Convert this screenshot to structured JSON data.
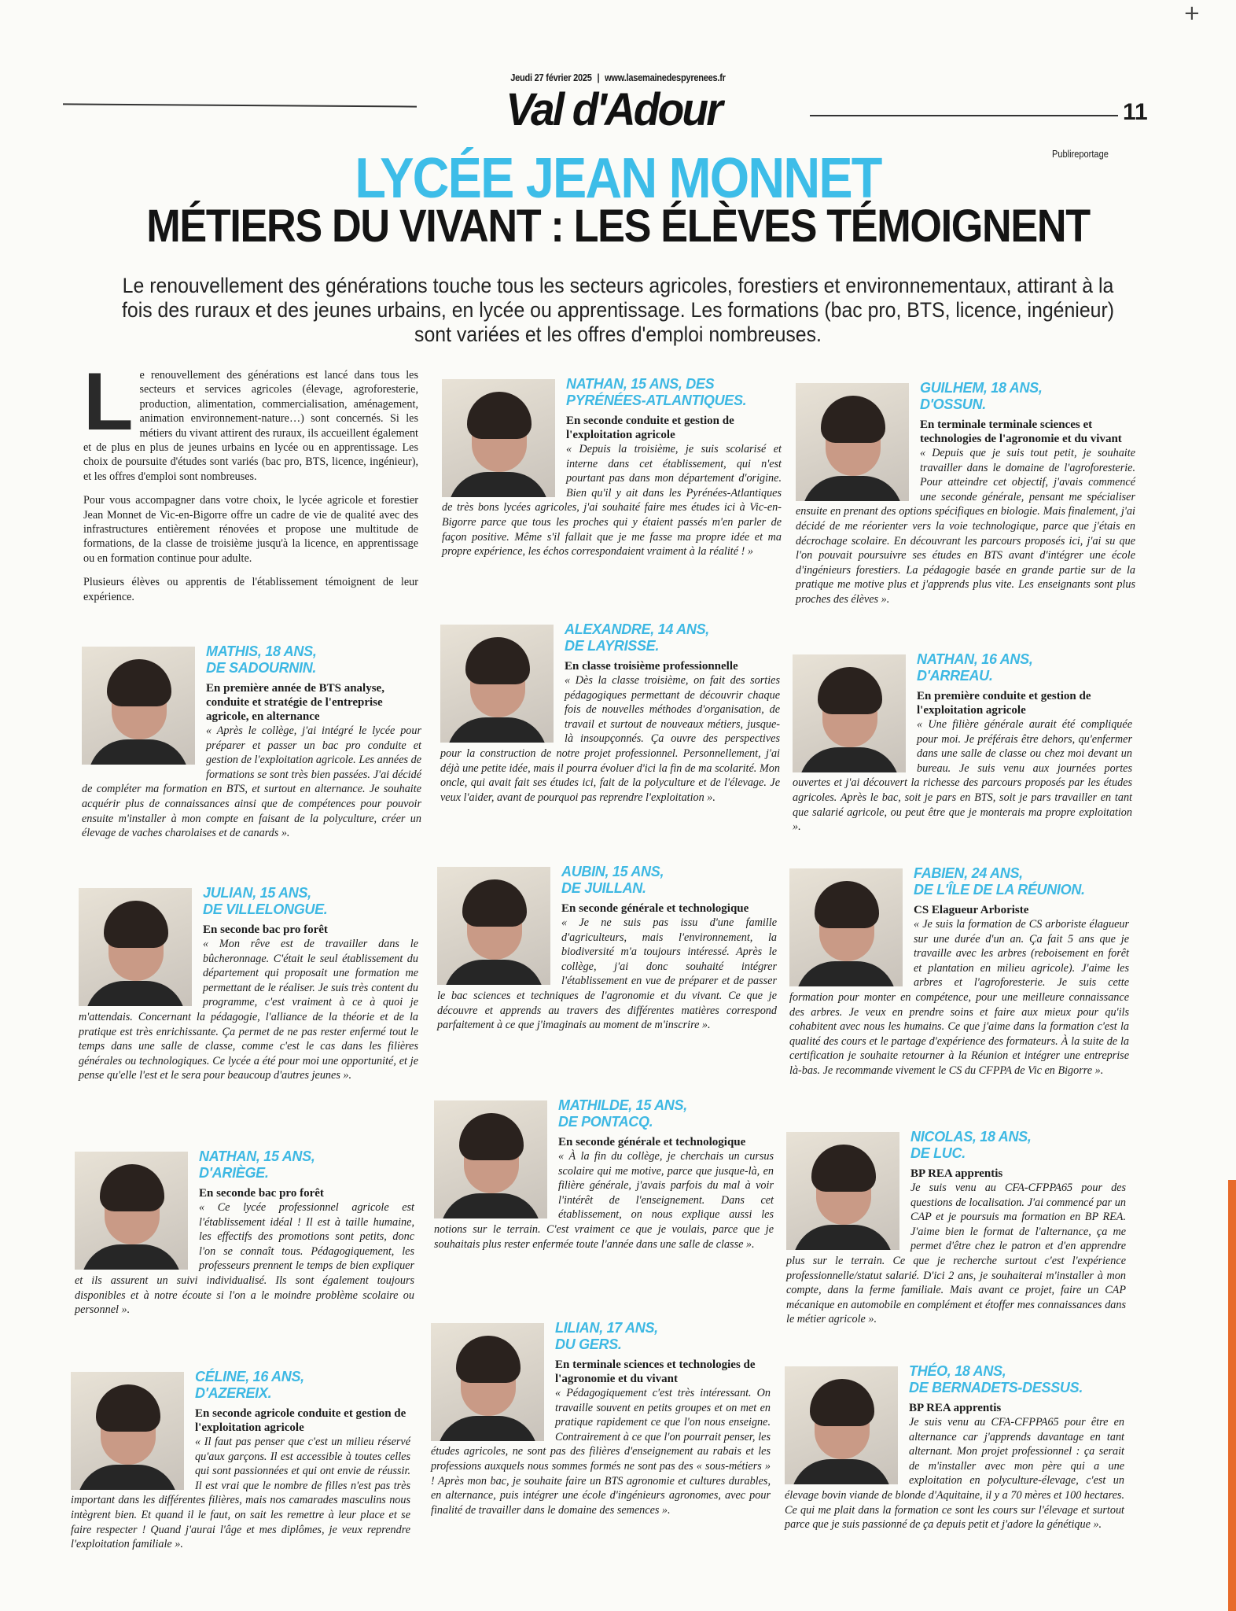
{
  "header": {
    "date": "Jeudi 27 février 2025",
    "website": "www.lasemainedespyrenees.fr",
    "section": "Val d'Adour",
    "page_number": "11",
    "label": "Publireportage"
  },
  "article": {
    "kicker": "LYCÉE JEAN MONNET",
    "headline": "MÉTIERS DU VIVANT : LES ÉLÈVES TÉMOIGNENT",
    "lede": "Le renouvellement des générations touche tous les secteurs agricoles, forestiers et environnementaux, attirant à la fois des ruraux et des jeunes urbains, en lycée ou apprentissage. Les formations (bac pro, BTS, licence, ingénieur) sont variées et les offres d'emploi nombreuses.",
    "intro": {
      "dropcap": "L",
      "p1": "e renouvellement des générations est lancé dans tous les secteurs et services agricoles (élevage, agroforesterie, production, alimentation, commercialisation, aménagement, animation environnement-nature…) sont concernés. Si les métiers du vivant attirent des ruraux, ils accueillent également et de plus en plus de jeunes urbains en lycée ou en apprentissage. Les choix de poursuite d'études sont variés (bac pro, BTS, licence, ingénieur), et les offres d'emploi sont nombreuses.",
      "p2": "Pour vous accompagner dans votre choix, le lycée agricole et forestier Jean Monnet de Vic-en-Bigorre offre un cadre de vie de qualité avec des infrastructures entièrement rénovées et propose une multitude de formations, de la classe de troisième jusqu'à la licence, en apprentissage ou en formation continue pour adulte.",
      "p3": "Plusieurs élèves ou apprentis de l'établissement témoignent de leur expérience."
    },
    "testimonials": [
      {
        "name1": "MATHIS, 18 ANS,",
        "name2": "DE SADOURNIN.",
        "program": "En première année de BTS analyse, conduite et stratégie de l'entreprise agricole, en alternance",
        "quote": "« Après le collège, j'ai intégré le lycée pour préparer et passer un bac pro conduite et gestion de l'exploitation agricole. Les années de formations se sont très bien passées. J'ai décidé de compléter ma formation en BTS, et surtout en alternance. Je souhaite acquérir plus de connaissances ainsi que de compétences pour pouvoir ensuite m'installer à mon compte en faisant de la polyculture, créer un élevage de vaches charolaises et de canards »."
      },
      {
        "name1": "JULIAN, 15 ANS,",
        "name2": "DE VILLELONGUE.",
        "program": "En seconde bac pro forêt",
        "quote": "« Mon rêve est de travailler dans le bûcheronnage. C'était le seul établissement du département qui proposait une formation me permettant de le réaliser. Je suis très content du programme, c'est vraiment à ce à quoi je m'attendais. Concernant la pédagogie, l'alliance de la théorie et de la pratique est très enrichissante. Ça permet de ne pas rester enfermé tout le temps dans une salle de classe, comme c'est le cas dans les filières générales ou technologiques. Ce lycée a été pour moi une opportunité, et je pense qu'elle l'est et le sera pour beaucoup d'autres jeunes »."
      },
      {
        "name1": "NATHAN, 15 ANS,",
        "name2": "D'ARIÈGE.",
        "program": "En seconde bac pro forêt",
        "quote": "« Ce lycée professionnel agricole est l'établissement idéal ! Il est à taille humaine, les effectifs des promotions sont petits, donc l'on se connaît tous. Pédagogiquement, les professeurs prennent le temps de bien expliquer et ils assurent un suivi individualisé. Ils sont également toujours disponibles et à notre écoute si l'on a le moindre problème scolaire ou personnel »."
      },
      {
        "name1": "CÉLINE, 16 ANS,",
        "name2": "D'AZEREIX.",
        "program": "En seconde agricole conduite et gestion de l'exploitation agricole",
        "quote": "« Il faut pas penser que c'est un milieu réservé qu'aux garçons. Il est accessible à toutes celles qui sont passionnées et qui ont envie de réussir. Il est vrai que le nombre de filles n'est pas très important dans les différentes filières, mais nos camarades masculins nous intègrent bien. Et quand il le faut, on sait les remettre à leur place et se faire respecter ! Quand j'aurai l'âge et mes diplômes, je veux reprendre l'exploitation familiale »."
      },
      {
        "name1": "NATHAN, 15 ANS, DES",
        "name2": "PYRÉNÉES-ATLANTIQUES.",
        "program": "En seconde conduite et gestion de l'exploitation agricole",
        "quote": "« Depuis la troisième, je suis scolarisé et interne dans cet établissement, qui n'est pourtant pas dans mon département d'origine. Bien qu'il y ait dans les Pyrénées-Atlantiques de très bons lycées agricoles, j'ai souhaité faire mes études ici à Vic-en-Bigorre parce que tous les proches qui y étaient passés m'en parler de façon positive. Même s'il fallait que je me fasse ma propre idée et ma propre expérience, les échos correspondaient vraiment à la réalité ! »"
      },
      {
        "name1": "ALEXANDRE, 14 ANS,",
        "name2": "DE LAYRISSE.",
        "program": "En classe troisième professionnelle",
        "quote": "« Dès la classe troisième, on fait des sorties pédagogiques permettant de découvrir chaque fois de nouvelles méthodes d'organisation, de travail et surtout de nouveaux métiers, jusque-là insoupçonnés. Ça ouvre des perspectives pour la construction de notre projet professionnel. Personnellement, j'ai déjà une petite idée, mais il pourra évoluer d'ici la fin de ma scolarité. Mon oncle, qui avait fait ses études ici, fait de la polyculture et de l'élevage. Je veux l'aider, avant de pourquoi pas reprendre l'exploitation »."
      },
      {
        "name1": "AUBIN, 15 ANS,",
        "name2": "DE JUILLAN.",
        "program": "En seconde générale et technologique",
        "quote": "« Je ne suis pas issu d'une famille d'agriculteurs, mais l'environnement, la biodiversité m'a toujours intéressé. Après le collège, j'ai donc souhaité intégrer l'établissement en vue de préparer et de passer le bac sciences et techniques de l'agronomie et du vivant. Ce que je découvre et apprends au travers des différentes matières correspond parfaitement à ce que j'imaginais au moment de m'inscrire »."
      },
      {
        "name1": "MATHILDE, 15 ANS,",
        "name2": "DE PONTACQ.",
        "program": "En seconde générale et technologique",
        "quote": "« À la fin du collège, je cherchais un cursus scolaire qui me motive, parce que jusque-là, en filière générale, j'avais parfois du mal à voir l'intérêt de l'enseignement. Dans cet établissement, on nous explique aussi les notions sur le terrain. C'est vraiment ce que je voulais, parce que je souhaitais plus rester enfermée toute l'année dans une salle de classe »."
      },
      {
        "name1": "LILIAN, 17 ANS,",
        "name2": "DU GERS.",
        "program": "En terminale sciences et technologies de l'agronomie et du vivant",
        "quote": "« Pédagogiquement c'est très intéressant. On travaille souvent en petits groupes et on met en pratique rapidement ce que l'on nous enseigne. Contrairement à ce que l'on pourrait penser, les études agricoles, ne sont pas des filières d'enseignement au rabais et les professions auxquels nous sommes formés ne sont pas des « sous-métiers » ! Après mon bac, je souhaite faire un BTS agronomie et cultures durables, en alternance, puis intégrer une école d'ingénieurs agronomes, avec pour finalité de travailler dans le domaine des semences »."
      },
      {
        "name1": "GUILHEM, 18 ANS,",
        "name2": "D'OSSUN.",
        "program": "En terminale terminale sciences et technologies de l'agronomie et du vivant",
        "quote": "« Depuis que je suis tout petit, je souhaite travailler dans le domaine de l'agroforesterie. Pour atteindre cet objectif, j'avais commencé une seconde générale, pensant me spécialiser ensuite en prenant des options spécifiques en biologie. Mais finalement, j'ai décidé de me réorienter vers la voie technologique, parce que j'étais en décrochage scolaire. En découvrant les parcours proposés ici, j'ai su que l'on pouvait poursuivre ses études en BTS avant d'intégrer une école d'ingénieurs forestiers. La pédagogie basée en grande partie sur de la pratique me motive plus et j'apprends plus vite. Les enseignants sont plus proches des élèves »."
      },
      {
        "name1": "NATHAN, 16 ANS,",
        "name2": "D'ARREAU.",
        "program": "En première conduite et gestion de l'exploitation agricole",
        "quote": "« Une filière générale aurait été compliquée pour moi. Je préférais être dehors, qu'enfermer dans une salle de classe ou chez moi devant un bureau. Je suis venu aux journées portes ouvertes et j'ai découvert la richesse des parcours proposés par les études agricoles. Après le bac, soit je pars en BTS, soit je pars travailler en tant que salarié agricole, ou peut être que je monterais ma propre exploitation »."
      },
      {
        "name1": "FABIEN, 24 ANS,",
        "name2": "DE L'ÎLE DE LA RÉUNION.",
        "program": "CS Elagueur Arboriste",
        "quote": "« Je suis la formation de CS arboriste élagueur sur une durée d'un an. Ça fait 5 ans que je travaille avec les arbres (reboisement en forêt et plantation en milieu agricole). J'aime les arbres et l'agroforesterie. Je suis cette formation pour monter en compétence, pour une meilleure connaissance des arbres. Je veux en prendre soins et faire aux mieux pour qu'ils cohabitent avec nous les humains. Ce que j'aime dans la formation c'est la qualité des cours et le partage d'expérience des formateurs. À la suite de la certification je souhaite retourner à la Réunion et intégrer une entreprise là-bas. Je recommande vivement le CS du CFPPA de Vic en Bigorre »."
      },
      {
        "name1": "NICOLAS, 18 ANS,",
        "name2": "DE LUC.",
        "program": "BP REA apprentis",
        "quote": "Je suis venu au CFA-CFPPA65 pour des questions de localisation. J'ai commencé par un CAP et je poursuis ma formation en BP REA. J'aime bien le format de l'alternance, ça me permet d'être chez le patron et d'en apprendre plus sur le terrain. Ce que je recherche surtout c'est l'expérience professionnelle/statut salarié. D'ici 2 ans, je souhaiterai m'installer à mon compte, dans la ferme familiale. Mais avant ce projet, faire un CAP mécanique en automobile en complément et étoffer mes connaissances dans le métier agricole »."
      },
      {
        "name1": "THÉO, 18 ANS,",
        "name2": "DE BERNADETS-DESSUS.",
        "program": "BP REA apprentis",
        "quote": "Je suis venu au CFA-CFPPA65 pour être en alternance car j'apprends davantage en tant alternant. Mon projet professionnel : ça serait de m'installer avec mon père qui a une exploitation en polyculture-élevage, c'est un élevage bovin viande de blonde d'Aquitaine, il y a 70 mères et 100 hectares. Ce qui me plait dans la formation ce sont les cours sur l'élevage et surtout parce que je suis passionné de ça depuis petit et j'adore la génétique »."
      }
    ]
  },
  "colors": {
    "accent": "#3db8e3",
    "text": "#1b1b1b",
    "edge": "#e76b2a"
  }
}
